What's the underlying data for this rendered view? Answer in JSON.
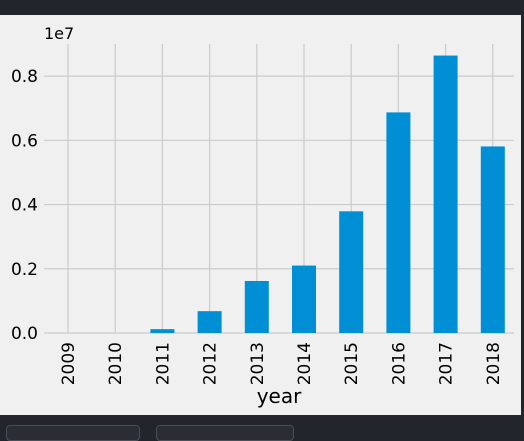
{
  "chart_data": {
    "type": "bar",
    "categories": [
      "2009",
      "2010",
      "2011",
      "2012",
      "2013",
      "2014",
      "2015",
      "2016",
      "2017",
      "2018"
    ],
    "values": [
      0,
      0,
      120000,
      680000,
      1620000,
      2100000,
      3790000,
      6870000,
      8640000,
      5810000
    ],
    "title": "",
    "xlabel": "year",
    "ylabel": "",
    "ylim": [
      0,
      9000000
    ],
    "yticks": [
      0,
      2000000,
      4000000,
      6000000,
      8000000
    ],
    "ytick_labels": [
      "0.0",
      "0.2",
      "0.4",
      "0.6",
      "0.8"
    ],
    "offset_label": "1e7",
    "grid": true,
    "colors": {
      "bar": "#008fd5",
      "plot_background": "#f0f0f0",
      "page_background": "#22252b",
      "grid": "#cbcbcb",
      "text": "#000000"
    }
  }
}
